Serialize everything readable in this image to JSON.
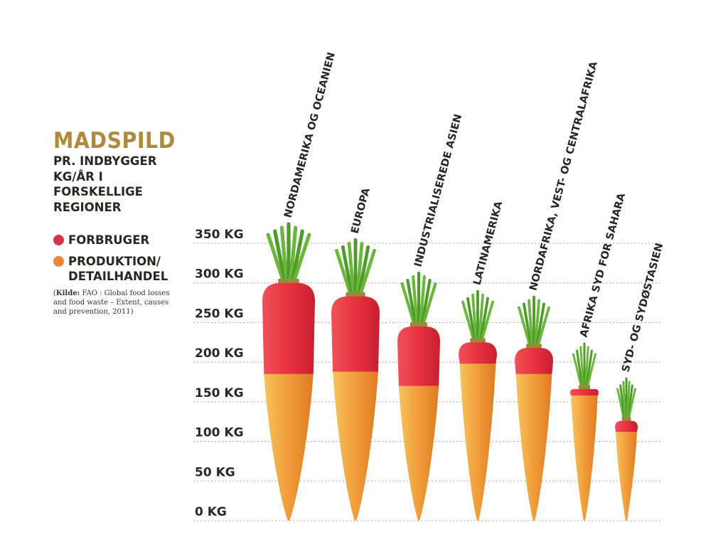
{
  "title": "MADSPILD",
  "subtitle": "PR. INDBYGGER\nKG/ÅR I\nFORSKELLIGE\nREGIONER",
  "legend": [
    {
      "label": "FORBRUGER",
      "color": "#d6334b"
    },
    {
      "label": "PRODUKTION/\nDETAILHANDEL",
      "color": "#e8893a"
    }
  ],
  "source": {
    "label": "Kilde:",
    "text": "FAO : Global food losses and food waste – Extent, causes and prevention, 2011"
  },
  "colors": {
    "consumer": "#e8313f",
    "production": "#f2a03c",
    "grid": "#b8a898",
    "leaves": "#6ab83a",
    "text": "#2c2620"
  },
  "chart_data": {
    "type": "bar",
    "stacked": true,
    "orientation": "vertical",
    "ylim": [
      0,
      350
    ],
    "yticks": [
      0,
      50,
      100,
      150,
      200,
      250,
      300,
      350
    ],
    "ytick_labels": [
      "0 KG",
      "50 KG",
      "100 KG",
      "150 KG",
      "200 KG",
      "250 KG",
      "300 KG",
      "350 KG"
    ],
    "categories": [
      "NORDAMERIKA OG OCEANIEN",
      "EUROPA",
      "INDUSTRIALISEREDE ASIEN",
      "LATINAMERIKA",
      "NORDAFRIKA, VEST- OG CENTRALAFRIKA",
      "AFRIKA SYD FOR SAHARA",
      "SYD- OG SYDØSTASIEN"
    ],
    "series": [
      {
        "name": "PRODUKTION/\nDETAILHANDEL",
        "values": [
          185,
          188,
          170,
          198,
          185,
          158,
          112
        ]
      },
      {
        "name": "FORBRUGER",
        "values": [
          115,
          95,
          75,
          27,
          33,
          8,
          14
        ]
      }
    ],
    "grid": true,
    "legend_position": "left"
  }
}
